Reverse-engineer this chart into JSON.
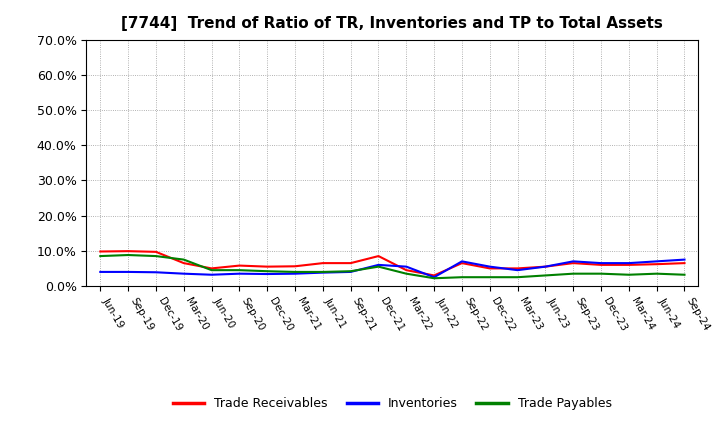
{
  "title": "[7744]  Trend of Ratio of TR, Inventories and TP to Total Assets",
  "x_labels": [
    "Jun-19",
    "Sep-19",
    "Dec-19",
    "Mar-20",
    "Jun-20",
    "Sep-20",
    "Dec-20",
    "Mar-21",
    "Jun-21",
    "Sep-21",
    "Dec-21",
    "Mar-22",
    "Jun-22",
    "Sep-22",
    "Dec-22",
    "Mar-23",
    "Jun-23",
    "Sep-23",
    "Dec-23",
    "Mar-24",
    "Jun-24",
    "Sep-24"
  ],
  "trade_receivables": [
    9.8,
    9.9,
    9.7,
    6.5,
    5.0,
    5.8,
    5.5,
    5.6,
    6.5,
    6.5,
    8.5,
    4.5,
    3.0,
    6.5,
    5.0,
    5.0,
    5.5,
    6.5,
    6.0,
    6.0,
    6.2,
    6.5
  ],
  "inventories": [
    4.0,
    4.0,
    3.9,
    3.5,
    3.2,
    3.5,
    3.4,
    3.5,
    3.8,
    4.0,
    6.0,
    5.5,
    2.5,
    7.0,
    5.5,
    4.5,
    5.5,
    7.0,
    6.5,
    6.5,
    7.0,
    7.5
  ],
  "trade_payables": [
    8.5,
    8.8,
    8.5,
    7.5,
    4.5,
    4.5,
    4.2,
    4.0,
    4.0,
    4.2,
    5.5,
    3.5,
    2.2,
    2.5,
    2.5,
    2.5,
    3.0,
    3.5,
    3.5,
    3.2,
    3.5,
    3.2
  ],
  "ylim": [
    0,
    70
  ],
  "yticks": [
    0,
    10,
    20,
    30,
    40,
    50,
    60,
    70
  ],
  "colors": {
    "trade_receivables": "#ff0000",
    "inventories": "#0000ff",
    "trade_payables": "#008000"
  },
  "background_color": "#ffffff",
  "plot_bg_color": "#ffffff",
  "grid_color": "#999999",
  "legend_labels": [
    "Trade Receivables",
    "Inventories",
    "Trade Payables"
  ]
}
